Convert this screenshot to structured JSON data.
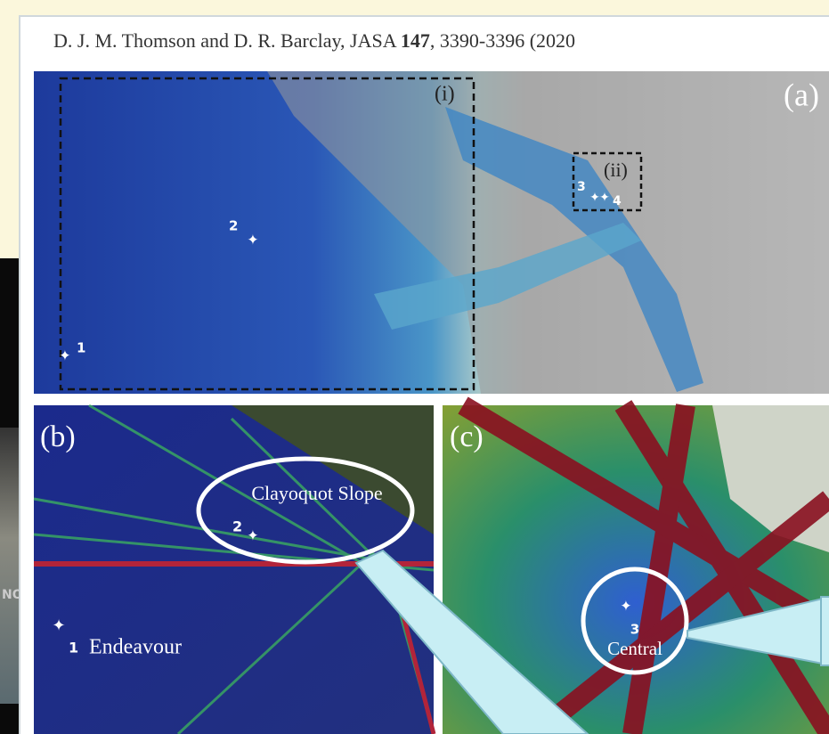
{
  "citation": {
    "authors": "D. J. M. Thomson and D. R. Barclay, JASA",
    "volume": "147",
    "pages": ", 3390-3396 (2020"
  },
  "panel_a": {
    "label": "(a)",
    "insets": [
      "(i)",
      "(ii)"
    ],
    "sites": [
      "1",
      "2",
      "3",
      "4"
    ]
  },
  "panel_b": {
    "label": "(b)",
    "callout": "Clayoquot Slope",
    "sites": [
      {
        "number": "2"
      },
      {
        "number": "1",
        "name": "Endeavour"
      }
    ]
  },
  "panel_c": {
    "label": "(c)",
    "sites": [
      {
        "number": "3",
        "name": "Central"
      }
    ]
  },
  "background_text": "NO"
}
